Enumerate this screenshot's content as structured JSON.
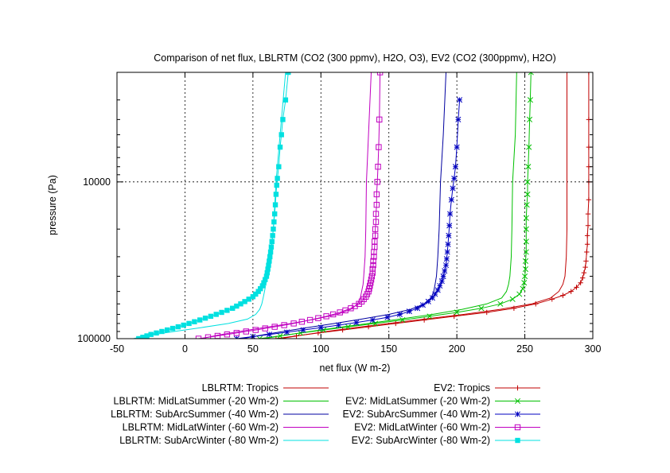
{
  "chart_data": {
    "type": "line",
    "title": "Comparison of net flux, LBLRTM (CO2 (300 ppmv), H2O, O3), EV2 (CO2 (300ppmv), H2O)",
    "xlabel": "net flux (W m-2)",
    "ylabel": "pressure (Pa)",
    "xlim": [
      -50,
      300
    ],
    "ylim": [
      100000,
      2000
    ],
    "yscale": "log",
    "y_reversed": true,
    "x_ticks": [
      "-50",
      "0",
      "50",
      "100",
      "150",
      "200",
      "250",
      "300"
    ],
    "y_ticks": [
      "10000",
      "100000"
    ],
    "grid": "dotted, at major ticks",
    "legend_position": "below plot, two columns",
    "series": [
      {
        "name": "LBLRTM: Tropics",
        "color": "#c00000",
        "marker": "none",
        "points": [
          [
            70,
            100000
          ],
          [
            86,
            95000
          ],
          [
            104,
            90000
          ],
          [
            125,
            85000
          ],
          [
            150,
            80000
          ],
          [
            176,
            75000
          ],
          [
            205,
            70000
          ],
          [
            232,
            65000
          ],
          [
            255,
            60000
          ],
          [
            269,
            55000
          ],
          [
            275,
            50000
          ],
          [
            278,
            45000
          ],
          [
            279.5,
            40000
          ],
          [
            280.5,
            30000
          ],
          [
            281,
            20000
          ],
          [
            281,
            10000
          ],
          [
            281,
            5000
          ],
          [
            281,
            2000
          ]
        ]
      },
      {
        "name": "LBLRTM: MidLatSummer (-20 Wm-2)",
        "color": "#00c000",
        "marker": "none",
        "points": [
          [
            58,
            100000
          ],
          [
            74,
            95000
          ],
          [
            92,
            90000
          ],
          [
            112,
            85000
          ],
          [
            135,
            80000
          ],
          [
            158,
            75000
          ],
          [
            182,
            70000
          ],
          [
            204,
            65000
          ],
          [
            222,
            60000
          ],
          [
            233,
            55000
          ],
          [
            236.5,
            50000
          ],
          [
            238,
            45000
          ],
          [
            239,
            40000
          ],
          [
            240,
            30000
          ],
          [
            240.5,
            20000
          ],
          [
            241,
            10000
          ],
          [
            243,
            5000
          ],
          [
            244,
            2000
          ]
        ]
      },
      {
        "name": "LBLRTM: SubArcSummer (-40 Wm-2)",
        "color": "#0000a0",
        "marker": "none",
        "points": [
          [
            42,
            100000
          ],
          [
            56,
            95000
          ],
          [
            72,
            90000
          ],
          [
            90,
            85000
          ],
          [
            110,
            80000
          ],
          [
            130,
            75000
          ],
          [
            150,
            70000
          ],
          [
            166,
            65000
          ],
          [
            176,
            60000
          ],
          [
            181,
            55000
          ],
          [
            183,
            50000
          ],
          [
            184,
            45000
          ],
          [
            185,
            40000
          ],
          [
            186,
            30000
          ],
          [
            187,
            20000
          ],
          [
            188,
            10000
          ],
          [
            190,
            5000
          ],
          [
            192,
            2000
          ]
        ]
      },
      {
        "name": "LBLRTM: MidLatWinter (-60 Wm-2)",
        "color": "#c000c0",
        "marker": "none",
        "points": [
          [
            12,
            100000
          ],
          [
            24,
            95000
          ],
          [
            40,
            90000
          ],
          [
            58,
            85000
          ],
          [
            78,
            80000
          ],
          [
            96,
            75000
          ],
          [
            112,
            70000
          ],
          [
            122,
            65000
          ],
          [
            127,
            60000
          ],
          [
            129,
            55000
          ],
          [
            130,
            50000
          ],
          [
            131,
            45000
          ],
          [
            131.5,
            40000
          ],
          [
            132.5,
            30000
          ],
          [
            133,
            20000
          ],
          [
            133.5,
            10000
          ],
          [
            135,
            5000
          ],
          [
            137,
            2000
          ]
        ]
      },
      {
        "name": "LBLRTM: SubArcWinter (-80 Wm-2)",
        "color": "#00e0e0",
        "marker": "none",
        "points": [
          [
            -38,
            100000
          ],
          [
            -26,
            95000
          ],
          [
            -8,
            90000
          ],
          [
            12,
            85000
          ],
          [
            32,
            80000
          ],
          [
            46,
            75000
          ],
          [
            52,
            70000
          ],
          [
            55,
            65000
          ],
          [
            56.5,
            60000
          ],
          [
            57.5,
            55000
          ],
          [
            58.5,
            50000
          ],
          [
            59.5,
            45000
          ],
          [
            60.5,
            40000
          ],
          [
            63,
            30000
          ],
          [
            65,
            20000
          ],
          [
            67,
            10000
          ],
          [
            70,
            5000
          ],
          [
            74,
            2000
          ]
        ]
      },
      {
        "name": "EV2: Tropics",
        "color": "#c00000",
        "marker": "plus",
        "points": [
          [
            67,
            100000
          ],
          [
            82,
            96000
          ],
          [
            98,
            92000
          ],
          [
            116,
            88000
          ],
          [
            135,
            84000
          ],
          [
            155,
            80000
          ],
          [
            176,
            76000
          ],
          [
            198,
            72000
          ],
          [
            222,
            68000
          ],
          [
            242,
            64000
          ],
          [
            258,
            60000
          ],
          [
            270,
            56000
          ],
          [
            278,
            53000
          ],
          [
            284,
            50000
          ],
          [
            288,
            47000
          ],
          [
            291,
            44000
          ],
          [
            292.5,
            41000
          ],
          [
            293.5,
            38000
          ],
          [
            294.5,
            35000
          ],
          [
            295,
            32000
          ],
          [
            295.5,
            28000
          ],
          [
            296,
            25000
          ],
          [
            296,
            22000
          ],
          [
            296.5,
            19000
          ],
          [
            296.5,
            16000
          ],
          [
            297,
            13000
          ],
          [
            297,
            10000
          ],
          [
            297,
            8000
          ],
          [
            297,
            6000
          ],
          [
            297,
            4000
          ],
          [
            297,
            2000
          ]
        ]
      },
      {
        "name": "EV2: MidLatSummer (-20 Wm-2)",
        "color": "#00c000",
        "marker": "x",
        "points": [
          [
            55,
            100000
          ],
          [
            70,
            96000
          ],
          [
            85,
            92000
          ],
          [
            102,
            88000
          ],
          [
            120,
            84000
          ],
          [
            140,
            80000
          ],
          [
            160,
            76000
          ],
          [
            180,
            72000
          ],
          [
            200,
            68000
          ],
          [
            218,
            64000
          ],
          [
            232,
            60000
          ],
          [
            241,
            56000
          ],
          [
            246,
            52000
          ],
          [
            248.5,
            48000
          ],
          [
            249.5,
            44000
          ],
          [
            250,
            40000
          ],
          [
            250.5,
            36000
          ],
          [
            250.5,
            32000
          ],
          [
            251,
            28000
          ],
          [
            251,
            24000
          ],
          [
            251,
            20000
          ],
          [
            251,
            17000
          ],
          [
            251.5,
            14000
          ],
          [
            252,
            12000
          ],
          [
            252,
            10000
          ],
          [
            252.5,
            8000
          ],
          [
            253,
            6000
          ],
          [
            253.5,
            4000
          ],
          [
            254,
            3000
          ],
          [
            254.5,
            2000
          ]
        ]
      },
      {
        "name": "EV2: SubArcSummer (-40 Wm-2)",
        "color": "#0000c0",
        "marker": "star",
        "points": [
          [
            38,
            100000
          ],
          [
            50,
            97000
          ],
          [
            62,
            94000
          ],
          [
            75,
            91000
          ],
          [
            87,
            88000
          ],
          [
            100,
            85000
          ],
          [
            113,
            82000
          ],
          [
            126,
            79000
          ],
          [
            138,
            76000
          ],
          [
            149,
            73000
          ],
          [
            158,
            70000
          ],
          [
            165,
            67000
          ],
          [
            171,
            64000
          ],
          [
            175,
            61000
          ],
          [
            179,
            58000
          ],
          [
            182,
            55000
          ],
          [
            184,
            52000
          ],
          [
            186,
            49000
          ],
          [
            187.5,
            46000
          ],
          [
            189,
            43000
          ],
          [
            190,
            40000
          ],
          [
            191,
            37000
          ],
          [
            192,
            34000
          ],
          [
            192.5,
            31000
          ],
          [
            193,
            28000
          ],
          [
            193.5,
            25000
          ],
          [
            194,
            22000
          ],
          [
            194.5,
            19000
          ],
          [
            195,
            16000
          ],
          [
            196,
            13000
          ],
          [
            197,
            11000
          ],
          [
            198,
            9500
          ],
          [
            199,
            8000
          ],
          [
            200,
            6000
          ],
          [
            201,
            4000
          ],
          [
            202,
            3000
          ]
        ]
      },
      {
        "name": "EV2: MidLatWinter (-60 Wm-2)",
        "color": "#c000c0",
        "marker": "square-open",
        "points": [
          [
            10,
            100000
          ],
          [
            17,
            98000
          ],
          [
            24,
            96000
          ],
          [
            31,
            94000
          ],
          [
            38,
            92000
          ],
          [
            45,
            90000
          ],
          [
            52,
            88000
          ],
          [
            59,
            86000
          ],
          [
            66,
            84000
          ],
          [
            73,
            82000
          ],
          [
            80,
            80000
          ],
          [
            86,
            78000
          ],
          [
            92,
            76000
          ],
          [
            98,
            74000
          ],
          [
            104,
            72000
          ],
          [
            109,
            70000
          ],
          [
            114,
            68000
          ],
          [
            118,
            66000
          ],
          [
            122,
            64000
          ],
          [
            125,
            62000
          ],
          [
            128,
            60000
          ],
          [
            130,
            58000
          ],
          [
            131.5,
            56000
          ],
          [
            133,
            54000
          ],
          [
            134,
            52000
          ],
          [
            135,
            50000
          ],
          [
            135.5,
            48000
          ],
          [
            136,
            46000
          ],
          [
            136.5,
            44000
          ],
          [
            137,
            42000
          ],
          [
            137.5,
            40000
          ],
          [
            138,
            38000
          ],
          [
            138,
            36000
          ],
          [
            138.5,
            34000
          ],
          [
            138.5,
            32000
          ],
          [
            139,
            30000
          ],
          [
            139,
            28000
          ],
          [
            139.5,
            26000
          ],
          [
            139.5,
            24000
          ],
          [
            140,
            22000
          ],
          [
            140,
            20000
          ],
          [
            140.5,
            18000
          ],
          [
            140.5,
            16000
          ],
          [
            141,
            14000
          ],
          [
            141,
            12000
          ],
          [
            141.5,
            10000
          ],
          [
            142,
            8000
          ],
          [
            142.5,
            6000
          ],
          [
            143,
            4000
          ],
          [
            143.5,
            2000
          ]
        ]
      },
      {
        "name": "EV2: SubArcWinter (-80 Wm-2)",
        "color": "#00e0e0",
        "marker": "square-filled",
        "points": [
          [
            -34,
            100000
          ],
          [
            -31,
            98000
          ],
          [
            -28,
            96000
          ],
          [
            -25,
            94000
          ],
          [
            -21,
            92000
          ],
          [
            -17,
            90000
          ],
          [
            -13,
            88000
          ],
          [
            -9,
            86000
          ],
          [
            -5,
            84000
          ],
          [
            -1,
            82000
          ],
          [
            3,
            80000
          ],
          [
            7,
            78000
          ],
          [
            11,
            76000
          ],
          [
            15,
            74000
          ],
          [
            19,
            72000
          ],
          [
            23,
            70000
          ],
          [
            27,
            68000
          ],
          [
            31,
            66000
          ],
          [
            35,
            64000
          ],
          [
            38,
            62000
          ],
          [
            41,
            60000
          ],
          [
            44,
            58000
          ],
          [
            47,
            56000
          ],
          [
            50,
            54000
          ],
          [
            52,
            52000
          ],
          [
            54,
            50000
          ],
          [
            55.5,
            48000
          ],
          [
            57,
            46000
          ],
          [
            58,
            44000
          ],
          [
            59,
            42000
          ],
          [
            60,
            40000
          ],
          [
            60.5,
            38000
          ],
          [
            61,
            36000
          ],
          [
            61.5,
            34000
          ],
          [
            62,
            32000
          ],
          [
            62.5,
            30000
          ],
          [
            63,
            28000
          ],
          [
            63.5,
            26000
          ],
          [
            64,
            24000
          ],
          [
            64.5,
            22000
          ],
          [
            65,
            20000
          ],
          [
            65.5,
            18000
          ],
          [
            66,
            16000
          ],
          [
            66.5,
            14000
          ],
          [
            67,
            12000
          ],
          [
            67.5,
            10500
          ],
          [
            68,
            9500
          ],
          [
            69,
            8000
          ],
          [
            70,
            6000
          ],
          [
            71,
            5000
          ],
          [
            72,
            4000
          ],
          [
            74,
            3000
          ],
          [
            76,
            2000
          ]
        ]
      }
    ]
  }
}
